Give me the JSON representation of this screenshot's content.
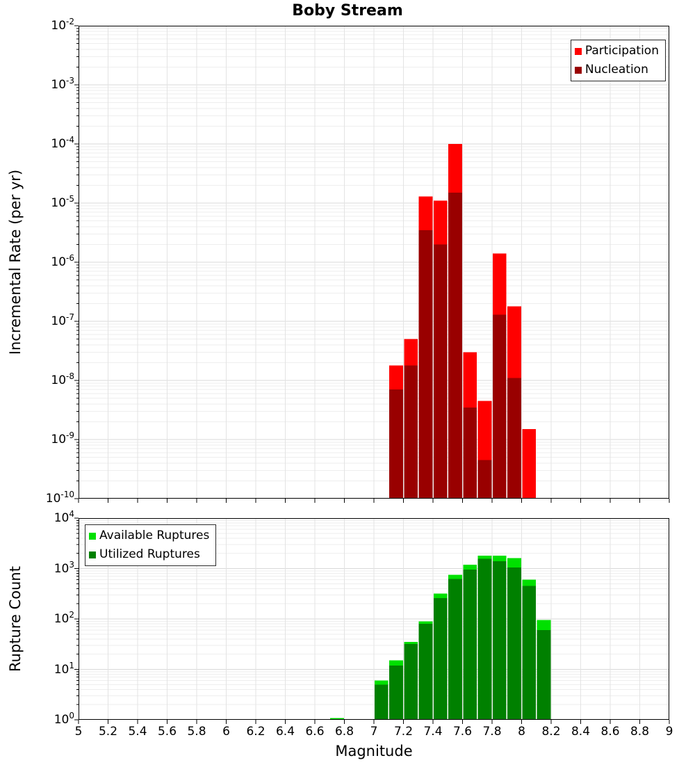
{
  "title": "Boby Stream",
  "x_axis": {
    "label": "Magnitude",
    "min": 5,
    "max": 9,
    "tick_labels": [
      "5",
      "5.2",
      "5.4",
      "5.6",
      "5.8",
      "6",
      "6.2",
      "6.4",
      "6.6",
      "6.8",
      "7",
      "7.2",
      "7.4",
      "7.6",
      "7.8",
      "8",
      "8.2",
      "8.4",
      "8.6",
      "8.8",
      "9"
    ]
  },
  "chart_data": [
    {
      "type": "bar",
      "panel": "incremental-rate",
      "title": "Boby Stream",
      "xlabel": "Magnitude",
      "ylabel": "Incremental Rate (per yr)",
      "y_scale": "log",
      "ylim": [
        1e-10,
        0.01
      ],
      "y_tick_labels": [
        "10^-2",
        "10^-3",
        "10^-4",
        "10^-5",
        "10^-6",
        "10^-7",
        "10^-8",
        "10^-9",
        "10^-10"
      ],
      "grid": true,
      "legend_position": "top-right",
      "bin_width": 0.1,
      "bin_starts": [
        7.1,
        7.2,
        7.3,
        7.4,
        7.5,
        7.6,
        7.7,
        7.8,
        7.9,
        8.0
      ],
      "series": [
        {
          "name": "Participation",
          "color": "#ff0000",
          "values": [
            1.8e-08,
            5e-08,
            1.3e-05,
            1.1e-05,
            0.0001,
            3e-08,
            4.5e-09,
            1.4e-06,
            1.8e-07,
            1.5e-09
          ]
        },
        {
          "name": "Nucleation",
          "color": "#990000",
          "values": [
            7e-09,
            1.8e-08,
            3.5e-06,
            2e-06,
            1.5e-05,
            3.5e-09,
            4.5e-10,
            1.3e-07,
            1.1e-08,
            null
          ]
        }
      ]
    },
    {
      "type": "bar",
      "panel": "rupture-count",
      "title": "",
      "xlabel": "Magnitude",
      "ylabel": "Rupture Count",
      "y_scale": "log",
      "ylim": [
        1,
        10000
      ],
      "y_tick_labels": [
        "10^4",
        "10^3",
        "10^2",
        "10^1",
        "10^0"
      ],
      "grid": true,
      "legend_position": "top-left",
      "bin_width": 0.1,
      "bin_starts": [
        6.7,
        7.0,
        7.1,
        7.2,
        7.3,
        7.4,
        7.5,
        7.6,
        7.7,
        7.8,
        7.9,
        8.0,
        8.1
      ],
      "series": [
        {
          "name": "Available Ruptures",
          "color": "#00e000",
          "values": [
            1,
            6,
            15,
            35,
            90,
            320,
            750,
            1200,
            1800,
            1800,
            1600,
            600,
            95
          ]
        },
        {
          "name": "Utilized Ruptures",
          "color": "#008000",
          "values": [
            null,
            5,
            12,
            32,
            80,
            260,
            620,
            950,
            1550,
            1400,
            1050,
            450,
            60
          ]
        }
      ]
    }
  ]
}
